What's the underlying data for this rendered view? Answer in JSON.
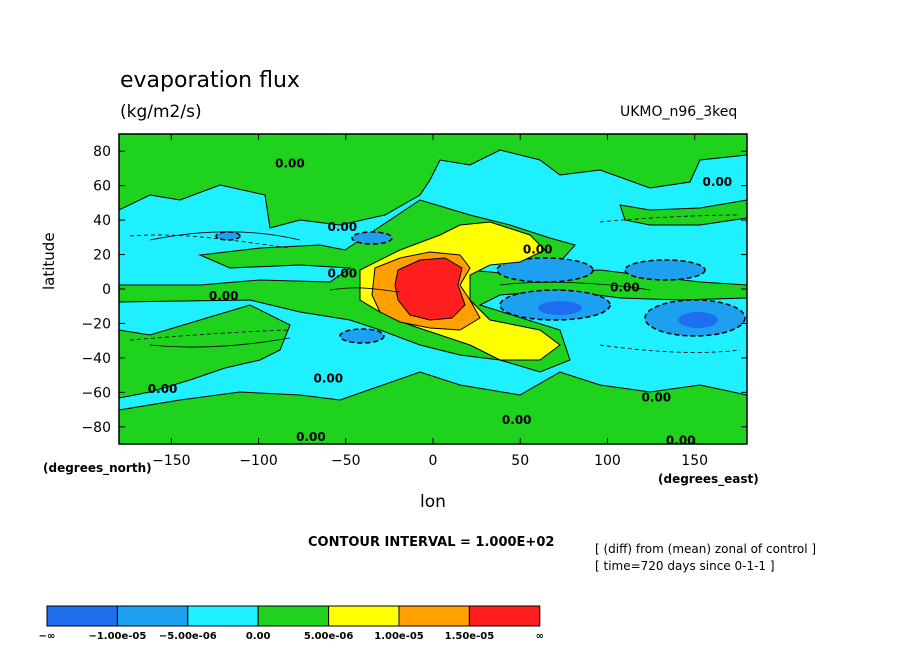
{
  "title": "evaporation flux",
  "units": "(kg/m2/s)",
  "dataset": "UKMO_n96_3keq",
  "notes": {
    "contour_interval": "CONTOUR INTERVAL = 1.000E+02",
    "line1": "[ (diff) from (mean) zonal of control ]",
    "line2": "[ time=720 days since 0-1-1 ]"
  },
  "chart_data": {
    "type": "heatmap",
    "title": "evaporation flux",
    "subtitle": "(kg/m2/s)",
    "xlabel": "lon",
    "ylabel": "latitude",
    "x_units_label": "(degrees_east)",
    "y_units_label": "(degrees_north)",
    "xlim": [
      -180,
      180
    ],
    "ylim": [
      -90,
      90
    ],
    "xticks": [
      -150,
      -100,
      -50,
      0,
      50,
      100,
      150
    ],
    "yticks": [
      80,
      60,
      40,
      20,
      0,
      -20,
      -40,
      -60,
      -80
    ],
    "contour_labels": [
      {
        "text": "0.00",
        "lon": -82,
        "lat": 73
      },
      {
        "text": "0.00",
        "lon": 163,
        "lat": 62
      },
      {
        "text": "0.00",
        "lon": -52,
        "lat": 36
      },
      {
        "text": "0.00",
        "lon": 60,
        "lat": 23
      },
      {
        "text": "0.00",
        "lon": -52,
        "lat": 9
      },
      {
        "text": "0.00",
        "lon": -120,
        "lat": -4
      },
      {
        "text": "0.00",
        "lon": 110,
        "lat": 1
      },
      {
        "text": "0.00",
        "lon": -60,
        "lat": -52
      },
      {
        "text": "0.00",
        "lon": -155,
        "lat": -58
      },
      {
        "text": "0.00",
        "lon": 128,
        "lat": -63
      },
      {
        "text": "0.00",
        "lon": 48,
        "lat": -76
      },
      {
        "text": "0.00",
        "lon": -70,
        "lat": -86
      },
      {
        "text": "0.00",
        "lon": 142,
        "lat": -88
      }
    ],
    "colorbar": {
      "levels": [
        "-∞",
        "-1.00e-05",
        "-5.00e-06",
        "0.00",
        "5.00e-06",
        "1.00e-05",
        "1.50e-05",
        "∞"
      ],
      "colors": [
        "#1e6ef0",
        "#1ea0f0",
        "#1ef0ff",
        "#1ed21e",
        "#ffff00",
        "#ffa000",
        "#ff1e1e"
      ]
    }
  }
}
